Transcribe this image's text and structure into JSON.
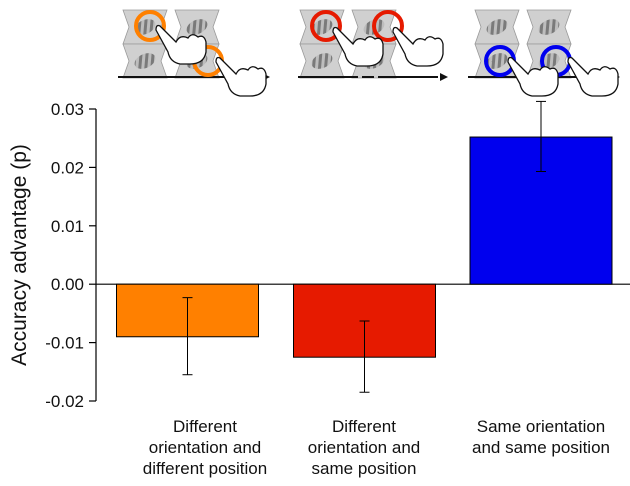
{
  "chart_data": {
    "type": "bar",
    "title": "",
    "xlabel": "",
    "ylabel": "Accuracy advantage (p)",
    "ylim": [
      -0.02,
      0.03
    ],
    "yticks": [
      "-0.02",
      "-0.01",
      "0.00",
      "0.01",
      "0.02",
      "0.03"
    ],
    "grid": false,
    "categories": [
      [
        "Different",
        "orientation and",
        "different position"
      ],
      [
        "Different",
        "orientation and",
        "same position"
      ],
      [
        "Same orientation",
        "and same position"
      ]
    ],
    "values": [
      -0.009,
      -0.0125,
      0.0252
    ],
    "error_low": [
      -0.0155,
      -0.0185,
      0.0193
    ],
    "error_high": [
      -0.0023,
      -0.0063,
      0.0313
    ],
    "colors": [
      "#ff8000",
      "#e61a00",
      "#0000ee"
    ],
    "icon_ring_colors": [
      "#ff8000",
      "#e61a00",
      "#0000ee"
    ]
  }
}
